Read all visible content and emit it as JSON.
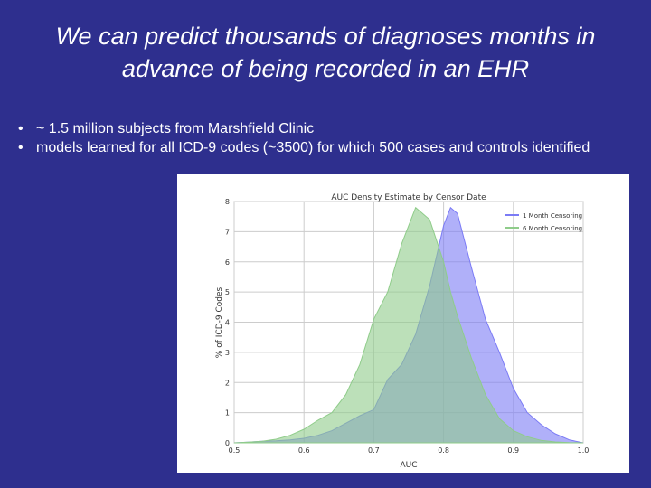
{
  "slide": {
    "title_line1": "We can predict thousands of diagnoses months in",
    "title_line2": "advance of being recorded in an  EHR",
    "bullets": [
      "~ 1.5 million subjects from Marshfield Clinic",
      "models learned for all ICD-9 codes (~3500) for which 500 cases and controls identified"
    ],
    "bullet_glyph": "•"
  },
  "colors": {
    "background": "#2e2f8e",
    "series_1": "#7b7bf5",
    "series_2": "#8fcc8a",
    "overlap": "#5e8a9a"
  },
  "chart_data": {
    "type": "area",
    "title": "AUC Density Estimate by Censor Date",
    "xlabel": "AUC",
    "ylabel": "% of ICD-9 Codes",
    "xlim": [
      0.5,
      1.0
    ],
    "ylim": [
      0,
      8
    ],
    "xticks": [
      0.5,
      0.6,
      0.7,
      0.8,
      0.9,
      1.0
    ],
    "xtick_labels": [
      "0.5",
      "0.6",
      "0.7",
      "0.8",
      "0.9",
      "1.0"
    ],
    "yticks": [
      0,
      1,
      2,
      3,
      4,
      5,
      6,
      7,
      8
    ],
    "ytick_labels": [
      "0",
      "1",
      "2",
      "3",
      "4",
      "5",
      "6",
      "7",
      "8"
    ],
    "grid": true,
    "legend_position": "top-right",
    "x": [
      0.5,
      0.52,
      0.54,
      0.56,
      0.58,
      0.6,
      0.62,
      0.64,
      0.66,
      0.68,
      0.7,
      0.72,
      0.74,
      0.76,
      0.78,
      0.8,
      0.81,
      0.82,
      0.84,
      0.86,
      0.88,
      0.9,
      0.92,
      0.94,
      0.96,
      0.98,
      1.0
    ],
    "series": [
      {
        "name": "1 Month Censoring",
        "values": [
          0.0,
          0.02,
          0.05,
          0.07,
          0.1,
          0.15,
          0.25,
          0.4,
          0.65,
          0.9,
          1.1,
          2.1,
          2.6,
          3.6,
          5.2,
          7.2,
          7.8,
          7.6,
          5.8,
          4.1,
          3.0,
          1.8,
          1.0,
          0.6,
          0.3,
          0.1,
          0.0
        ]
      },
      {
        "name": "6 Month Censoring",
        "values": [
          0.0,
          0.02,
          0.05,
          0.12,
          0.25,
          0.45,
          0.75,
          1.0,
          1.6,
          2.6,
          4.1,
          5.0,
          6.6,
          7.8,
          7.4,
          6.0,
          5.0,
          4.2,
          2.8,
          1.6,
          0.8,
          0.4,
          0.2,
          0.08,
          0.03,
          0.01,
          0.0
        ]
      }
    ]
  }
}
